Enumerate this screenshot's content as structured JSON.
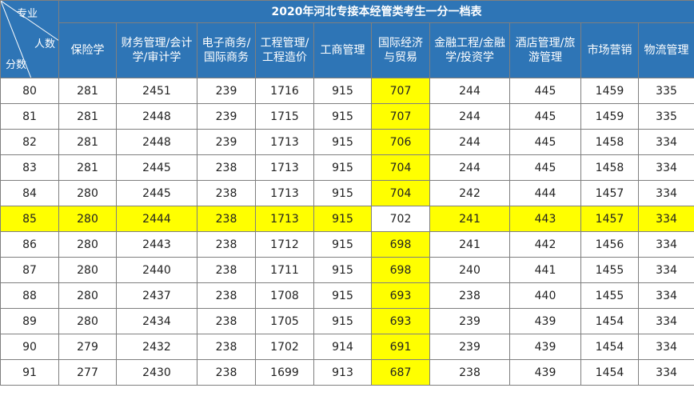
{
  "title": "2020年河北专接本经管类考生一分一档表",
  "corner": {
    "major": "专业",
    "count": "人数",
    "score": "分数"
  },
  "columns": [
    {
      "label1": "保险学",
      "label2": ""
    },
    {
      "label1": "财务管理/会计",
      "label2": "学/审计学"
    },
    {
      "label1": "电子商务/",
      "label2": "国际商务"
    },
    {
      "label1": "工程管理/",
      "label2": "工程造价"
    },
    {
      "label1": "工商管理",
      "label2": ""
    },
    {
      "label1": "国际经济",
      "label2": "与贸易"
    },
    {
      "label1": "金融工程/金融",
      "label2": "学/投资学"
    },
    {
      "label1": "酒店管理/旅",
      "label2": "游管理"
    },
    {
      "label1": "市场营销",
      "label2": ""
    },
    {
      "label1": "物流管理",
      "label2": ""
    }
  ],
  "rows": [
    {
      "score": "80",
      "values": [
        "281",
        "2451",
        "239",
        "1716",
        "915",
        "707",
        "244",
        "445",
        "1459",
        "335"
      ]
    },
    {
      "score": "81",
      "values": [
        "281",
        "2448",
        "239",
        "1715",
        "915",
        "707",
        "244",
        "445",
        "1459",
        "335"
      ]
    },
    {
      "score": "82",
      "values": [
        "281",
        "2448",
        "239",
        "1713",
        "915",
        "706",
        "244",
        "445",
        "1458",
        "334"
      ]
    },
    {
      "score": "83",
      "values": [
        "281",
        "2445",
        "238",
        "1713",
        "915",
        "704",
        "244",
        "445",
        "1458",
        "334"
      ]
    },
    {
      "score": "84",
      "values": [
        "280",
        "2445",
        "238",
        "1713",
        "915",
        "704",
        "242",
        "444",
        "1457",
        "334"
      ]
    },
    {
      "score": "85",
      "values": [
        "280",
        "2444",
        "238",
        "1713",
        "915",
        "702",
        "241",
        "443",
        "1457",
        "334"
      ]
    },
    {
      "score": "86",
      "values": [
        "280",
        "2443",
        "238",
        "1712",
        "915",
        "698",
        "241",
        "442",
        "1456",
        "334"
      ]
    },
    {
      "score": "87",
      "values": [
        "280",
        "2440",
        "238",
        "1711",
        "915",
        "698",
        "240",
        "441",
        "1455",
        "334"
      ]
    },
    {
      "score": "88",
      "values": [
        "280",
        "2437",
        "238",
        "1708",
        "915",
        "693",
        "238",
        "440",
        "1455",
        "334"
      ]
    },
    {
      "score": "89",
      "values": [
        "280",
        "2434",
        "238",
        "1705",
        "915",
        "693",
        "239",
        "439",
        "1454",
        "334"
      ]
    },
    {
      "score": "90",
      "values": [
        "279",
        "2432",
        "238",
        "1702",
        "914",
        "691",
        "239",
        "439",
        "1454",
        "334"
      ]
    },
    {
      "score": "91",
      "values": [
        "277",
        "2430",
        "238",
        "1699",
        "913",
        "687",
        "238",
        "439",
        "1454",
        "334"
      ]
    }
  ],
  "highlight": {
    "color": "#ffff00",
    "header_color": "#2e75b6",
    "column_index": 5,
    "row_score": "85"
  }
}
